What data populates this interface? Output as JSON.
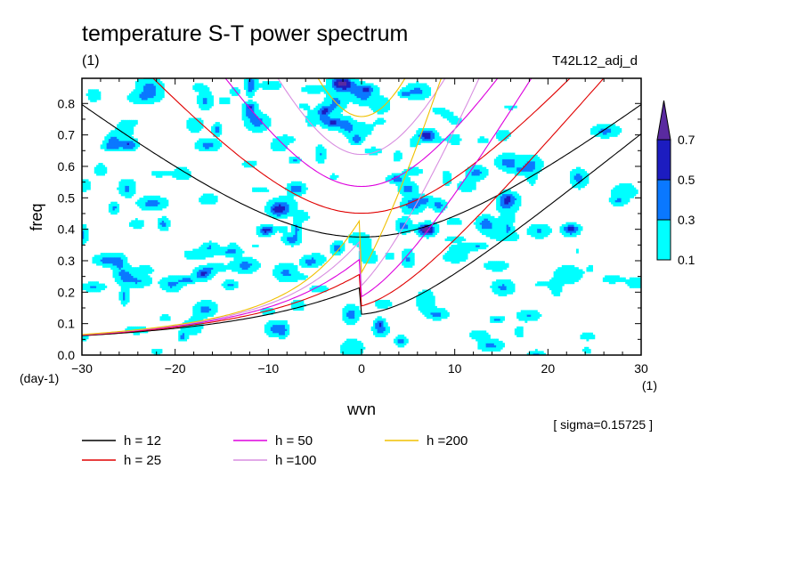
{
  "chart_data": {
    "type": "contour",
    "title": "temperature S-T power spectrum",
    "title_units": "(1)",
    "run_label": "T42L12_adj_d",
    "xlabel": "wvn",
    "xunits": "(1)",
    "ylabel": "freq",
    "yunits": "(day-1)",
    "xlim": [
      -30,
      30
    ],
    "ylim": [
      0,
      0.88
    ],
    "xticks": [
      -30,
      -20,
      -10,
      0,
      10,
      20,
      30
    ],
    "yticks": [
      0.0,
      0.1,
      0.2,
      0.3,
      0.4,
      0.5,
      0.6,
      0.7,
      0.8
    ],
    "sigma_note": "[ sigma=0.15725 ]",
    "colorbar": {
      "levels": [
        "0.1",
        "0.3",
        "0.5",
        "0.7"
      ],
      "colors": [
        "#00ffff",
        "#0a78ff",
        "#1c1cc0",
        "#5a2aa0"
      ]
    },
    "dispersion_curves": [
      {
        "name": "h = 12",
        "h": 12,
        "color": "#000000"
      },
      {
        "name": "h = 25",
        "h": 25,
        "color": "#e00000"
      },
      {
        "name": "h = 50",
        "h": 50,
        "color": "#dd00dd"
      },
      {
        "name": "h =100",
        "h": 100,
        "color": "#d88ee0"
      },
      {
        "name": "h =200",
        "h": 200,
        "color": "#f0c000"
      }
    ]
  }
}
